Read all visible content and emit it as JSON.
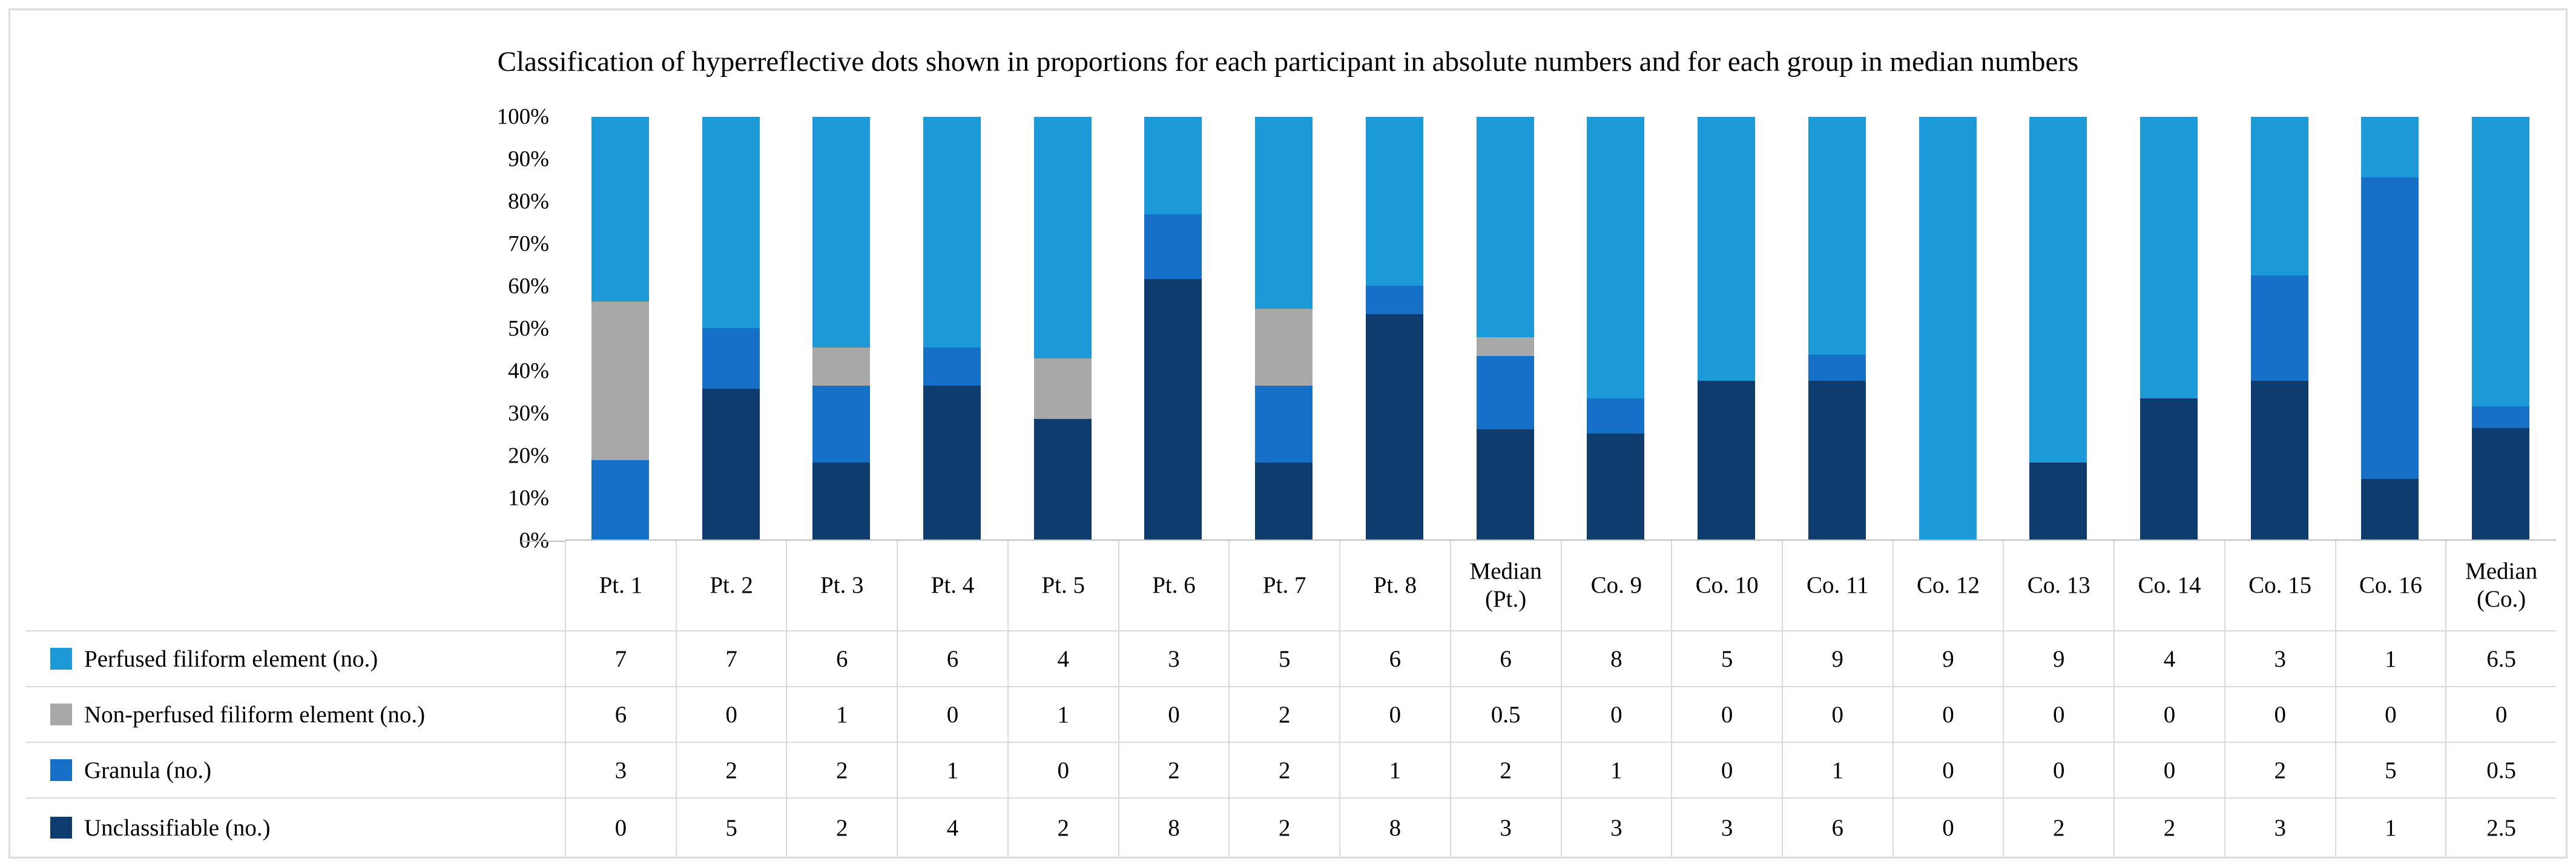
{
  "figure": {
    "title": "Classification of hyperreflective dots shown in proportions for each participant in absolute numbers and for each group in median numbers"
  },
  "chart_data": {
    "type": "bar",
    "subtype": "stacked-100-percent-column-with-data-table",
    "title": "Classification of hyperreflective dots shown in proportions for each participant in absolute numbers and for each group in median numbers",
    "categories": [
      "Pt. 1",
      "Pt. 2",
      "Pt. 3",
      "Pt. 4",
      "Pt. 5",
      "Pt. 6",
      "Pt. 7",
      "Pt. 8",
      "Median (Pt.)",
      "Co. 9",
      "Co. 10",
      "Co. 11",
      "Co. 12",
      "Co. 13",
      "Co. 14",
      "Co. 15",
      "Co. 16",
      "Median (Co.)"
    ],
    "series": [
      {
        "name": "Perfused filiform element (no.)",
        "color": "#1b9ad7",
        "values": [
          7,
          7,
          6,
          6,
          4,
          3,
          5,
          6,
          6,
          8,
          5,
          9,
          9,
          9,
          4,
          3,
          1,
          6.5
        ]
      },
      {
        "name": "Non-perfused filiform element (no.)",
        "color": "#a8a8a8",
        "values": [
          6,
          0,
          1,
          0,
          1,
          0,
          2,
          0,
          0.5,
          0,
          0,
          0,
          0,
          0,
          0,
          0,
          0,
          0
        ]
      },
      {
        "name": "Granula (no.)",
        "color": "#1770c8",
        "values": [
          3,
          2,
          2,
          1,
          0,
          2,
          2,
          1,
          2,
          1,
          0,
          1,
          0,
          0,
          0,
          2,
          5,
          0.5
        ]
      },
      {
        "name": "Unclassifiable (no.)",
        "color": "#0e3c6e",
        "values": [
          0,
          5,
          2,
          4,
          2,
          8,
          2,
          8,
          3,
          3,
          3,
          6,
          0,
          2,
          2,
          3,
          1,
          2.5
        ]
      }
    ],
    "stack_order_bottom_to_top": [
      "Unclassifiable (no.)",
      "Granula (no.)",
      "Non-perfused filiform element (no.)",
      "Perfused filiform element (no.)"
    ],
    "y_axis": {
      "unit": "%",
      "min": 0,
      "max": 100,
      "tick_labels": [
        "100%",
        "90%",
        "80%",
        "70%",
        "60%",
        "50%",
        "40%",
        "30%",
        "20%",
        "10%",
        "0%"
      ]
    },
    "grid": false,
    "legend_position": "table-rows-left",
    "axis_line_color": "#bfbfbf",
    "table_line_color": "#d9d9d9"
  }
}
